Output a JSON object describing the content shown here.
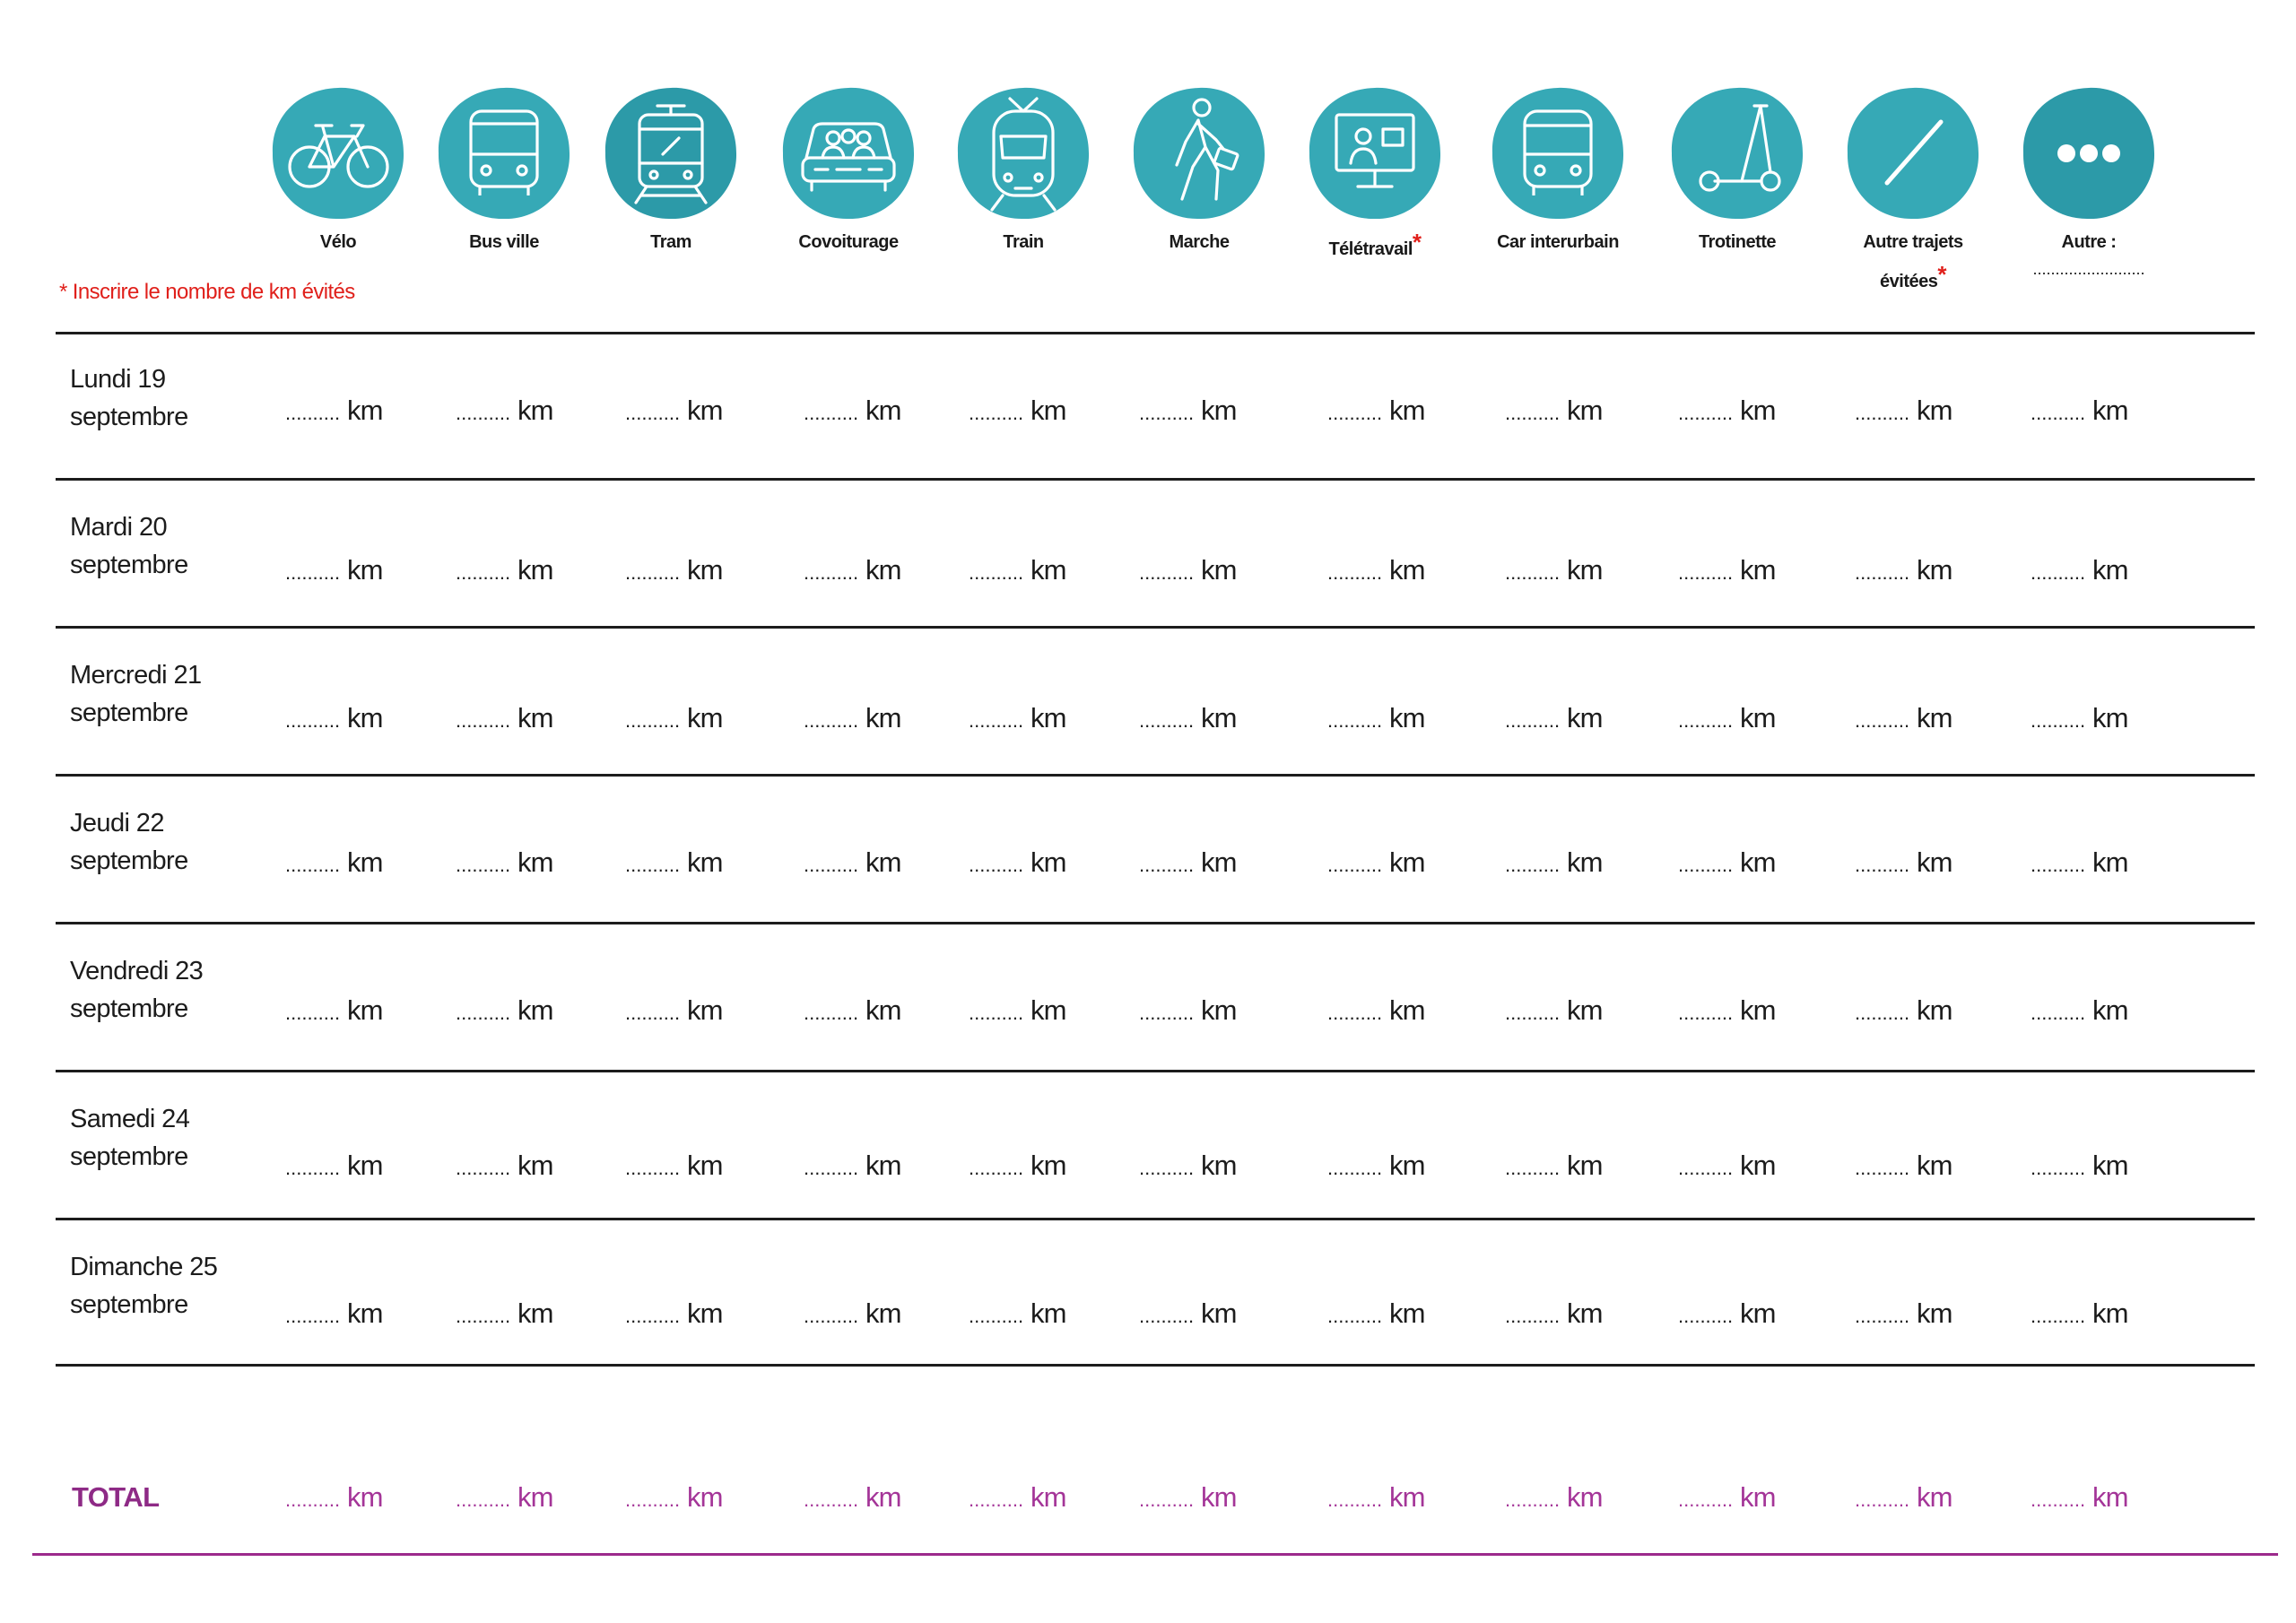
{
  "note": "* Inscrire le nombre de km évités",
  "colors": {
    "icon_teal": "#36a9b6",
    "note_red": "#e0201b",
    "total_purple": "#9c2a8c"
  },
  "modes": [
    {
      "label": "Vélo",
      "icon": "bicycle-icon",
      "star": ""
    },
    {
      "label": "Bus ville",
      "icon": "bus-icon",
      "star": ""
    },
    {
      "label": "Tram",
      "icon": "tram-icon",
      "star": ""
    },
    {
      "label": "Covoiturage",
      "icon": "carpool-icon",
      "star": ""
    },
    {
      "label": "Train",
      "icon": "train-icon",
      "star": ""
    },
    {
      "label": "Marche",
      "icon": "walking-icon",
      "star": ""
    },
    {
      "label": "Télétravail",
      "icon": "telework-icon",
      "star": "*"
    },
    {
      "label": "Car interurbain",
      "icon": "coach-icon",
      "star": ""
    },
    {
      "label": "Trotinette",
      "icon": "scooter-icon",
      "star": ""
    },
    {
      "label": "Autre trajets évitées",
      "icon": "slash-icon",
      "star": "*"
    },
    {
      "label": "Autre :",
      "icon": "more-dots-icon",
      "star": "",
      "blank": "........................."
    }
  ],
  "cell_blank": "..........",
  "unit": "km",
  "days": [
    {
      "line1": "Lundi 19",
      "line2": "septembre"
    },
    {
      "line1": "Mardi 20",
      "line2": "septembre"
    },
    {
      "line1": "Mercredi 21",
      "line2": "septembre"
    },
    {
      "line1": "Jeudi 22",
      "line2": "septembre"
    },
    {
      "line1": "Vendredi 23",
      "line2": "septembre"
    },
    {
      "line1": "Samedi 24",
      "line2": "septembre"
    },
    {
      "line1": "Dimanche 25",
      "line2": "septembre"
    }
  ],
  "total_label": "TOTAL"
}
